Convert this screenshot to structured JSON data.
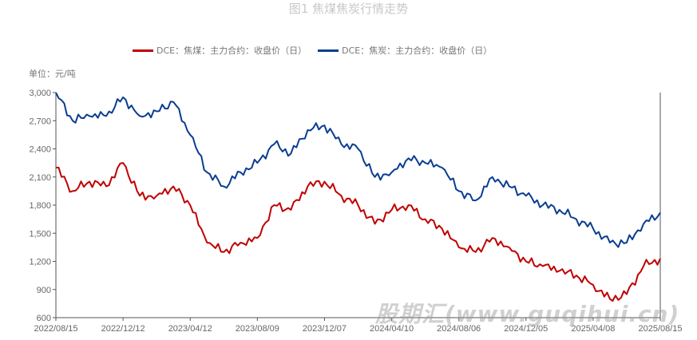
{
  "title": "图1 焦煤焦炭行情走势",
  "unit": "单位：元/吨",
  "watermark": "股期汇(www.guqihui.cn)",
  "chart_data": {
    "type": "line",
    "title": "图1 焦煤焦炭行情走势",
    "ylabel": "单位：元/吨",
    "ylim": [
      600,
      3000
    ],
    "yticks": [
      "3,000",
      "2,700",
      "2,400",
      "2,100",
      "1,800",
      "1,500",
      "1,200",
      "900",
      "600"
    ],
    "ytick_values": [
      3000,
      2700,
      2400,
      2100,
      1800,
      1500,
      1200,
      900,
      600
    ],
    "xticks": [
      "2022/08/15",
      "2022/12/12",
      "2023/04/12",
      "2023/08/09",
      "2023/12/07",
      "2024/04/10",
      "2024/08/06",
      "2024/12/05",
      "2025/04/08",
      "2025/08/15"
    ],
    "legend_position": "top",
    "x": [
      "2022-08",
      "2022-09",
      "2022-10",
      "2022-11",
      "2022-12",
      "2023-01",
      "2023-02",
      "2023-03",
      "2023-04",
      "2023-05",
      "2023-06",
      "2023-07",
      "2023-08",
      "2023-09",
      "2023-10",
      "2023-11",
      "2023-12",
      "2024-01",
      "2024-02",
      "2024-03",
      "2024-04",
      "2024-05",
      "2024-06",
      "2024-07",
      "2024-08",
      "2024-09",
      "2024-10",
      "2024-11",
      "2024-12",
      "2025-01",
      "2025-02",
      "2025-03",
      "2025-04",
      "2025-05",
      "2025-06",
      "2025-07",
      "2025-08"
    ],
    "series": [
      {
        "name": "DCE：焦煤：主力合约：收盘价（日）",
        "color": "#c00000",
        "values": [
          2200,
          1950,
          2050,
          2000,
          2250,
          1900,
          1900,
          2000,
          1800,
          1400,
          1300,
          1400,
          1450,
          1800,
          1750,
          2000,
          2050,
          1900,
          1800,
          1600,
          1750,
          1800,
          1650,
          1550,
          1350,
          1300,
          1450,
          1350,
          1200,
          1150,
          1100,
          1050,
          950,
          800,
          850,
          1150,
          1230
        ]
      },
      {
        "name": "DCE：焦炭：主力合约：收盘价（日）",
        "color": "#0a3d91",
        "values": [
          3000,
          2700,
          2750,
          2750,
          2950,
          2750,
          2800,
          2900,
          2550,
          2150,
          2000,
          2150,
          2250,
          2450,
          2350,
          2600,
          2650,
          2450,
          2400,
          2100,
          2150,
          2300,
          2250,
          2200,
          1950,
          1850,
          2100,
          2000,
          1900,
          1800,
          1750,
          1650,
          1550,
          1400,
          1400,
          1600,
          1720
        ]
      }
    ]
  }
}
